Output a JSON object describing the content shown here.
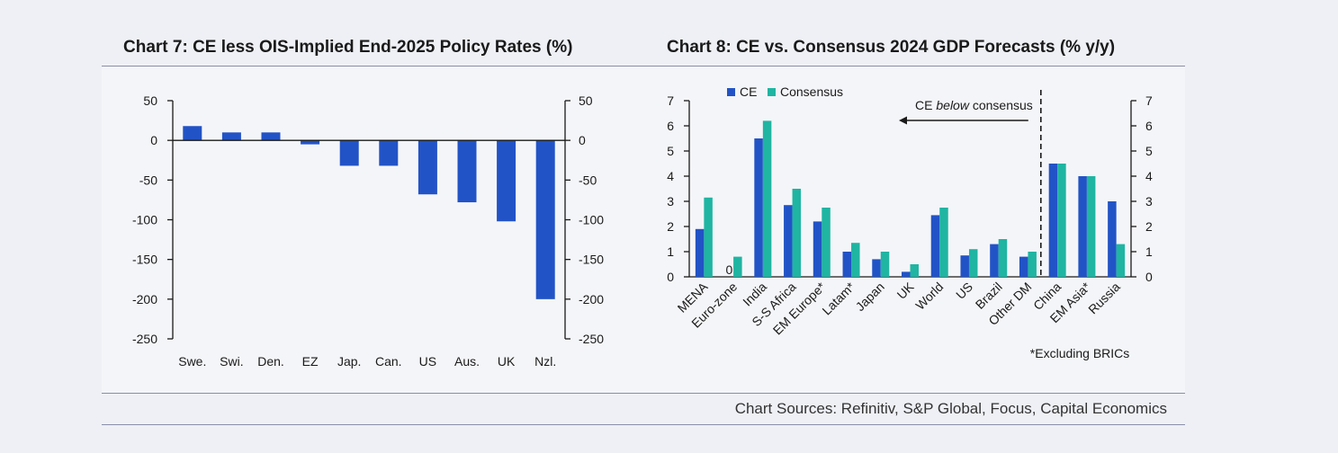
{
  "sources": "Chart Sources: Refinitiv, S&P Global, Focus, Capital Economics",
  "colors": {
    "ce": "#2253c6",
    "consensus": "#1fb5a2",
    "axis": "#1a1a1a"
  },
  "chart_data": [
    {
      "type": "bar",
      "title": "Chart 7: CE less OIS-Implied End-2025 Policy Rates (%)",
      "categories": [
        "Swe.",
        "Swi.",
        "Den.",
        "EZ",
        "Jap.",
        "Can.",
        "US",
        "Aus.",
        "UK",
        "Nzl."
      ],
      "values": [
        18,
        10,
        10,
        -5,
        -32,
        -32,
        -68,
        -78,
        -102,
        -200
      ],
      "ylim": [
        -250,
        50
      ],
      "yticks": [
        50,
        0,
        -50,
        -100,
        -150,
        -200,
        -250
      ],
      "grid": false
    },
    {
      "type": "bar",
      "title": "Chart 8: CE vs. Consensus 2024 GDP Forecasts (% y/y)",
      "categories": [
        "MENA",
        "Euro-zone",
        "India",
        "S-S Africa",
        "EM Europe*",
        "Latam*",
        "Japan",
        "UK",
        "World",
        "US",
        "Brazil",
        "Other DM",
        "China",
        "EM Asia*",
        "Russia"
      ],
      "series": [
        {
          "name": "CE",
          "values": [
            1.9,
            0.0,
            5.5,
            2.85,
            2.2,
            1.0,
            0.7,
            0.2,
            2.45,
            0.85,
            1.3,
            0.8,
            4.5,
            4.0,
            3.0
          ]
        },
        {
          "name": "Consensus",
          "values": [
            3.15,
            0.8,
            6.2,
            3.5,
            2.75,
            1.35,
            1.0,
            0.5,
            2.75,
            1.1,
            1.5,
            1.0,
            4.5,
            4.0,
            1.3
          ]
        }
      ],
      "ylim": [
        0,
        7
      ],
      "yticks": [
        0,
        1,
        2,
        3,
        4,
        5,
        6,
        7
      ],
      "legend": "top-left",
      "grid": false,
      "annotations": {
        "zero_label": "0",
        "below_prefix": "CE ",
        "below_italic": "below",
        "below_suffix": " consensus",
        "footnote": "*Excluding BRICs"
      }
    }
  ]
}
